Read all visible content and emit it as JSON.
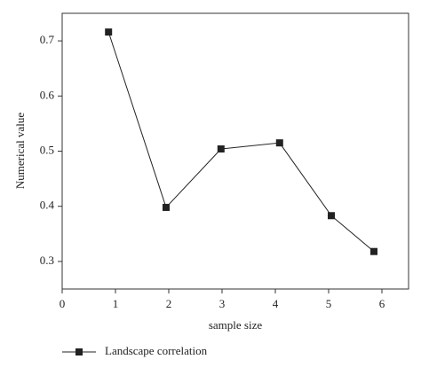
{
  "chart_data": {
    "type": "line",
    "xlabel": "sample size",
    "ylabel": "Numerical value",
    "x": [
      0.87,
      1.95,
      2.98,
      4.08,
      5.05,
      5.85
    ],
    "series": [
      {
        "name": "Landscape correlation",
        "color": "#222222",
        "values": [
          0.716,
          0.398,
          0.504,
          0.515,
          0.383,
          0.318
        ]
      }
    ],
    "xlim": [
      0,
      6.5
    ],
    "ylim": [
      0.25,
      0.75
    ],
    "xticks": [
      0,
      1,
      2,
      3,
      4,
      5,
      6
    ],
    "yticks": [
      0.3,
      0.4,
      0.5,
      0.6,
      0.7
    ],
    "legend": "bottom-left",
    "grid": false
  }
}
